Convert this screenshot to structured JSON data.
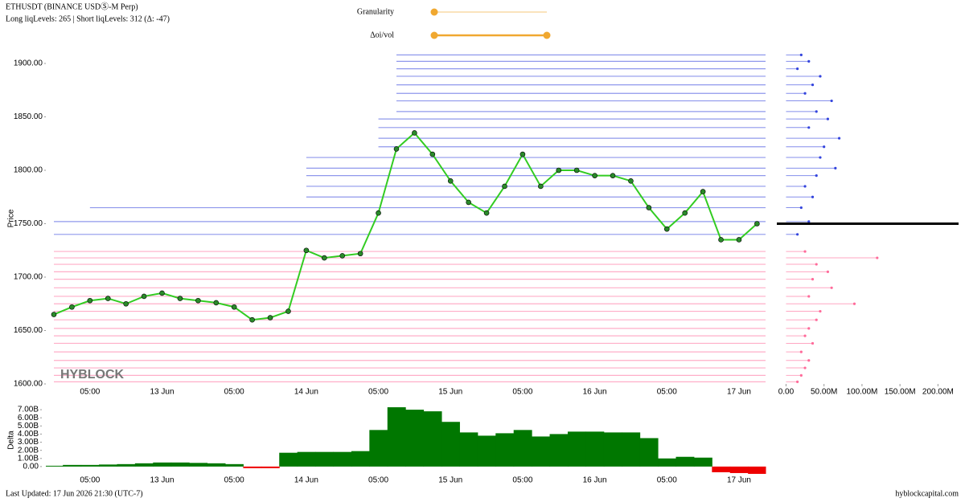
{
  "header": {
    "title": "ETHUSDT (BINANCE USDⓈ-M Perp)",
    "subtitle": "Long liqLevels: 265 | Short liqLevels: 312 (Δ: -47)"
  },
  "controls": [
    {
      "label": "Granularity"
    },
    {
      "label": "Δoi/vol"
    }
  ],
  "watermark": "HYBLOCK",
  "footer": {
    "updated": "Last Updated: 17 Jun 2026 21:30 (UTC-7)",
    "site": "hyblockcapital.com"
  },
  "chart_data": [
    {
      "type": "line",
      "ylabel": "Price",
      "categories": [
        null,
        null,
        "05:00",
        null,
        null,
        null,
        "13 Jun",
        null,
        null,
        null,
        "05:00",
        null,
        null,
        null,
        "14 Jun",
        null,
        null,
        null,
        "05:00",
        null,
        null,
        null,
        "15 Jun",
        null,
        null,
        null,
        "05:00",
        null,
        null,
        null,
        "16 Jun",
        null,
        null,
        null,
        "05:00",
        null,
        null,
        null,
        "17 Jun",
        null
      ],
      "series": [
        {
          "color": "#33cc22",
          "values": [
            1665,
            1672,
            1678,
            1680,
            1675,
            1682,
            1685,
            1680,
            1678,
            1676,
            1672,
            1660,
            1662,
            1668,
            1725,
            1718,
            1720,
            1722,
            1760,
            1820,
            1835,
            1815,
            1790,
            1770,
            1760,
            1785,
            1815,
            1785,
            1800,
            1800,
            1795,
            1795,
            1790,
            1765,
            1745,
            1760,
            1780,
            1735,
            1735,
            1750
          ]
        }
      ],
      "short_levels": {
        "color": "#3344dd",
        "prices": [
          1908,
          1902,
          1895,
          1888,
          1880,
          1872,
          1865,
          1855,
          1848,
          1840,
          1830,
          1822,
          1812,
          1802,
          1795,
          1785,
          1775,
          1765,
          1752,
          1740
        ],
        "amounts": [
          20000000,
          30000000,
          15000000,
          45000000,
          35000000,
          25000000,
          60000000,
          40000000,
          55000000,
          30000000,
          70000000,
          50000000,
          45000000,
          65000000,
          40000000,
          25000000,
          35000000,
          20000000,
          30000000,
          15000000
        ]
      },
      "long_levels": {
        "color": "#ff6b9a",
        "prices": [
          1724,
          1718,
          1712,
          1705,
          1698,
          1690,
          1682,
          1675,
          1668,
          1660,
          1652,
          1645,
          1638,
          1630,
          1622,
          1615,
          1608,
          1602
        ],
        "amounts": [
          25000000,
          120000000,
          40000000,
          55000000,
          35000000,
          60000000,
          30000000,
          90000000,
          45000000,
          40000000,
          30000000,
          25000000,
          35000000,
          20000000,
          30000000,
          25000000,
          20000000,
          15000000
        ]
      },
      "ylim": [
        1600,
        1910
      ],
      "yticks": [
        {
          "value": 1600,
          "label": "1600.00"
        },
        {
          "value": 1650,
          "label": "1650.00"
        },
        {
          "value": 1700,
          "label": "1700.00"
        },
        {
          "value": 1750,
          "label": "1750.00"
        },
        {
          "value": 1800,
          "label": "1800.00"
        },
        {
          "value": 1850,
          "label": "1850.00"
        },
        {
          "value": 1900,
          "label": "1900.00"
        }
      ],
      "x2lim": [
        -10000000,
        225000000
      ],
      "x2ticks": [
        {
          "value": 0,
          "label": "0.00"
        },
        {
          "value": 50000000,
          "label": "50.00M"
        },
        {
          "value": 100000000,
          "label": "100.00M"
        },
        {
          "value": 150000000,
          "label": "150.00M"
        },
        {
          "value": 200000000,
          "label": "200.00M"
        }
      ]
    },
    {
      "type": "bar",
      "ylabel": "Delta",
      "positive_color": "#007700",
      "negative_color": "#ee0000",
      "categories": [
        null,
        null,
        "05:00",
        null,
        null,
        null,
        "13 Jun",
        null,
        null,
        null,
        "05:00",
        null,
        null,
        null,
        "14 Jun",
        null,
        null,
        null,
        "05:00",
        null,
        null,
        null,
        "15 Jun",
        null,
        null,
        null,
        "05:00",
        null,
        null,
        null,
        "16 Jun",
        null,
        null,
        null,
        "05:00",
        null,
        null,
        null,
        "17 Jun",
        null
      ],
      "values": [
        100000000,
        200000000,
        200000000,
        250000000,
        300000000,
        400000000,
        500000000,
        500000000,
        450000000,
        400000000,
        300000000,
        -200000000,
        -200000000,
        1700000000,
        1800000000,
        1800000000,
        1800000000,
        1900000000,
        4500000000,
        7300000000,
        7000000000,
        6800000000,
        5500000000,
        4200000000,
        3800000000,
        4100000000,
        4500000000,
        3700000000,
        4000000000,
        4300000000,
        4300000000,
        4200000000,
        4200000000,
        3500000000,
        1000000000,
        1200000000,
        1100000000,
        -700000000,
        -800000000,
        -900000000
      ],
      "ylim": [
        -1100000000,
        7600000000
      ],
      "yticks": [
        {
          "value": 0,
          "label": "0.00"
        },
        {
          "value": 1000000000,
          "label": "1.00B"
        },
        {
          "value": 2000000000,
          "label": "2.00B"
        },
        {
          "value": 3000000000,
          "label": "3.00B"
        },
        {
          "value": 4000000000,
          "label": "4.00B"
        },
        {
          "value": 5000000000,
          "label": "5.00B"
        },
        {
          "value": 6000000000,
          "label": "6.00B"
        },
        {
          "value": 7000000000,
          "label": "7.00B"
        }
      ]
    }
  ]
}
